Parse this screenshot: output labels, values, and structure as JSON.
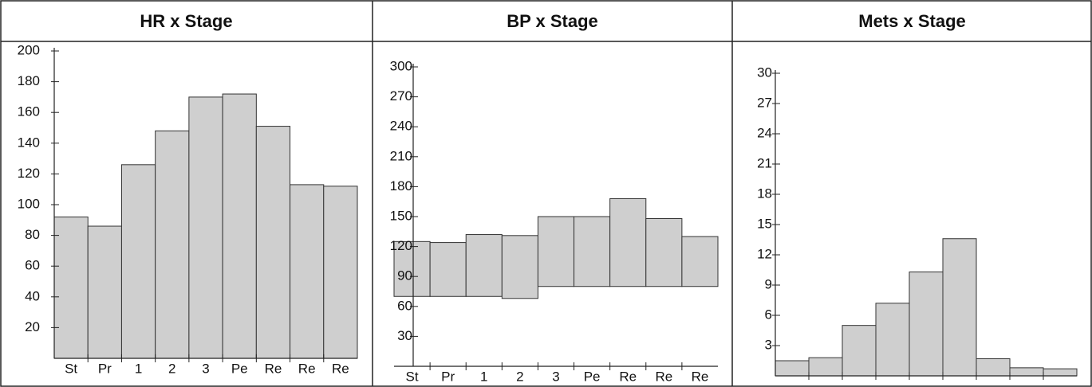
{
  "chart_data": [
    {
      "type": "bar",
      "title": "HR x Stage",
      "categories": [
        "St",
        "Pr",
        "1",
        "2",
        "3",
        "Pe",
        "Re",
        "Re",
        "Re"
      ],
      "values": [
        92,
        86,
        126,
        148,
        170,
        172,
        151,
        113,
        112
      ],
      "color": "#cfcfcf",
      "ylim": [
        0,
        200
      ],
      "yticks": [
        20,
        40,
        60,
        80,
        100,
        120,
        140,
        160,
        180,
        200
      ]
    },
    {
      "type": "range_bar",
      "title": "BP x Stage",
      "categories": [
        "St",
        "Pr",
        "1",
        "2",
        "3",
        "Pe",
        "Re",
        "Re",
        "Re"
      ],
      "values": [
        [
          70,
          125
        ],
        [
          70,
          124
        ],
        [
          70,
          132
        ],
        [
          68,
          131
        ],
        [
          80,
          150
        ],
        [
          80,
          150
        ],
        [
          80,
          168
        ],
        [
          80,
          148
        ],
        [
          80,
          130
        ]
      ],
      "color": "#cfcfcf",
      "ylim": [
        0,
        300
      ],
      "yticks": [
        30,
        60,
        90,
        120,
        150,
        180,
        210,
        240,
        270,
        300
      ]
    },
    {
      "type": "bar",
      "title": "Mets x Stage",
      "categories": [
        null,
        null,
        null,
        null,
        null,
        null,
        null,
        null,
        null
      ],
      "values": [
        1.5,
        1.8,
        5,
        7.2,
        10.3,
        13.6,
        1.7,
        0.8,
        0.7
      ],
      "color": "#cfcfcf",
      "ylim": [
        0,
        30
      ],
      "yticks": [
        3,
        6,
        9,
        12,
        15,
        18,
        21,
        24,
        27,
        30
      ]
    }
  ]
}
